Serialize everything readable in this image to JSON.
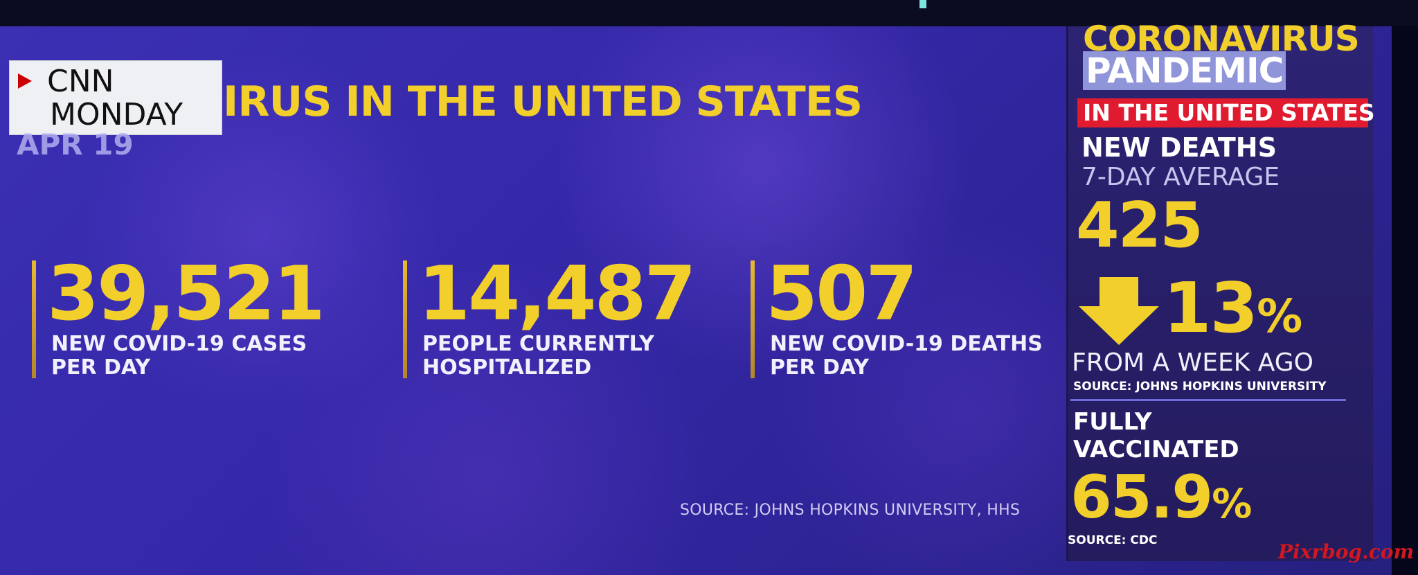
{
  "badge": {
    "network": "CNN",
    "day": "MONDAY"
  },
  "date": "APR 19",
  "headline": "IRUS IN THE UNITED STATES",
  "stats": [
    {
      "value": "39,521",
      "line1": "NEW COVID-19 CASES",
      "line2": "PER DAY"
    },
    {
      "value": "14,487",
      "line1": "PEOPLE CURRENTLY",
      "line2": "HOSPITALIZED"
    },
    {
      "value": "507",
      "line1": "NEW COVID-19 DEATHS",
      "line2": "PER DAY"
    }
  ],
  "main_source": "SOURCE: JOHNS HOPKINS UNIVERSITY, HHS",
  "panel": {
    "title1": "CORONAVIRUS",
    "title2": "PANDEMIC",
    "region": "IN THE UNITED STATES",
    "new_deaths": "NEW DEATHS",
    "avg_label": "7-DAY AVERAGE",
    "avg_value": "425",
    "change_value": "13",
    "change_unit": "%",
    "change_label": "FROM A WEEK AGO",
    "source1": "SOURCE: JOHNS HOPKINS UNIVERSITY",
    "vacc_line1": "FULLY",
    "vacc_line2": "VACCINATED",
    "vacc_value": "65.9",
    "vacc_unit": "%",
    "source2": "SOURCE: CDC"
  },
  "icons": {
    "live": "red-triangle-icon",
    "trend": "down-arrow-icon"
  },
  "colors": {
    "accent": "#f2cf2a",
    "alert": "#e01b2f",
    "background": "#3528a8"
  },
  "watermark": "Pixrbog.com"
}
